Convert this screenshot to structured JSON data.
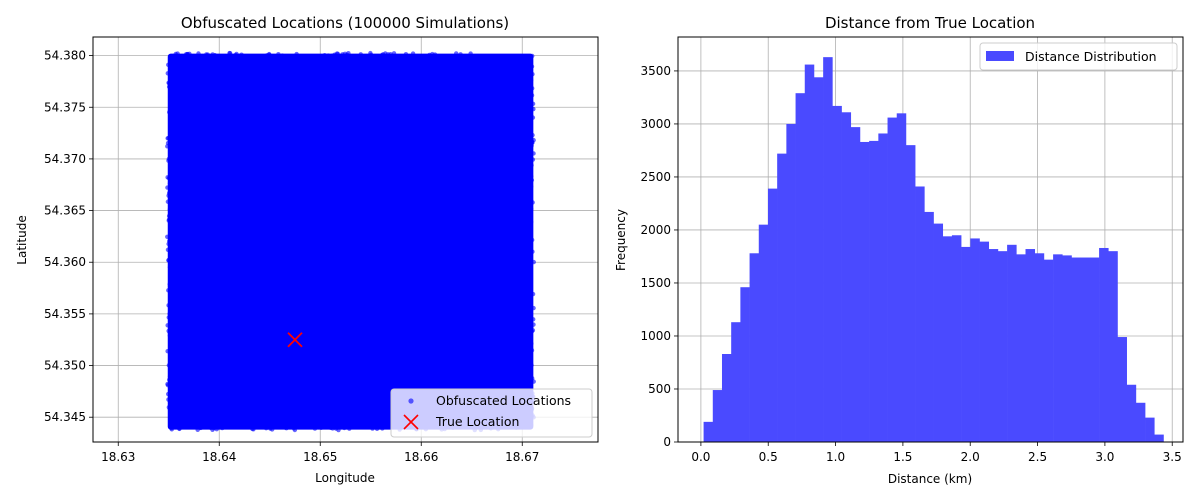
{
  "chart_data": [
    {
      "type": "scatter",
      "title": "Obfuscated Locations (100000 Simulations)",
      "xlabel": "Longitude",
      "ylabel": "Latitude",
      "xlim": [
        18.6275,
        18.6775
      ],
      "ylim": [
        54.3426,
        54.3818
      ],
      "xticks": [
        18.63,
        18.64,
        18.65,
        18.66,
        18.67
      ],
      "xtick_labels": [
        "18.63",
        "18.64",
        "18.65",
        "18.66",
        "18.67"
      ],
      "yticks": [
        54.345,
        54.35,
        54.355,
        54.36,
        54.365,
        54.37,
        54.375,
        54.38
      ],
      "ytick_labels": [
        "54.345",
        "54.350",
        "54.355",
        "54.360",
        "54.365",
        "54.370",
        "54.375",
        "54.380"
      ],
      "grid": true,
      "legend_position": "bottom-right",
      "series": [
        {
          "name": "Obfuscated Locations",
          "kind": "uniform-region",
          "x_range": [
            18.635,
            18.671
          ],
          "y_range": [
            54.3439,
            54.3801
          ],
          "color": "#0000ff"
        },
        {
          "name": "True Location",
          "kind": "point",
          "x": 18.6475,
          "y": 54.3525,
          "color": "#ff0000",
          "marker": "x"
        }
      ]
    },
    {
      "type": "bar",
      "title": "Distance from True Location",
      "xlabel": "Distance (km)",
      "ylabel": "Frequency",
      "xlim": [
        -0.17,
        3.58
      ],
      "ylim": [
        0,
        3820
      ],
      "xticks": [
        0.0,
        0.5,
        1.0,
        1.5,
        2.0,
        2.5,
        3.0,
        3.5
      ],
      "xtick_labels": [
        "0.0",
        "0.5",
        "1.0",
        "1.5",
        "2.0",
        "2.5",
        "3.0",
        "3.5"
      ],
      "yticks": [
        0,
        500,
        1000,
        1500,
        2000,
        2500,
        3000,
        3500
      ],
      "ytick_labels": [
        "0",
        "500",
        "1000",
        "1500",
        "2000",
        "2500",
        "3000",
        "3500"
      ],
      "grid": true,
      "legend_position": "top-right",
      "series": [
        {
          "name": "Distance Distribution",
          "color": "#4a4aff",
          "bin_start": 0.02,
          "bin_width": 0.0683,
          "values": [
            190,
            490,
            830,
            1130,
            1460,
            1780,
            2050,
            2390,
            2720,
            3000,
            3290,
            3560,
            3440,
            3630,
            3170,
            3110,
            2970,
            2830,
            2840,
            2910,
            3060,
            3100,
            2800,
            2410,
            2170,
            2060,
            1940,
            1950,
            1840,
            1920,
            1890,
            1820,
            1800,
            1860,
            1770,
            1820,
            1780,
            1720,
            1770,
            1760,
            1740,
            1740,
            1740,
            1830,
            1800,
            990,
            540,
            370,
            230,
            70
          ]
        }
      ]
    }
  ]
}
